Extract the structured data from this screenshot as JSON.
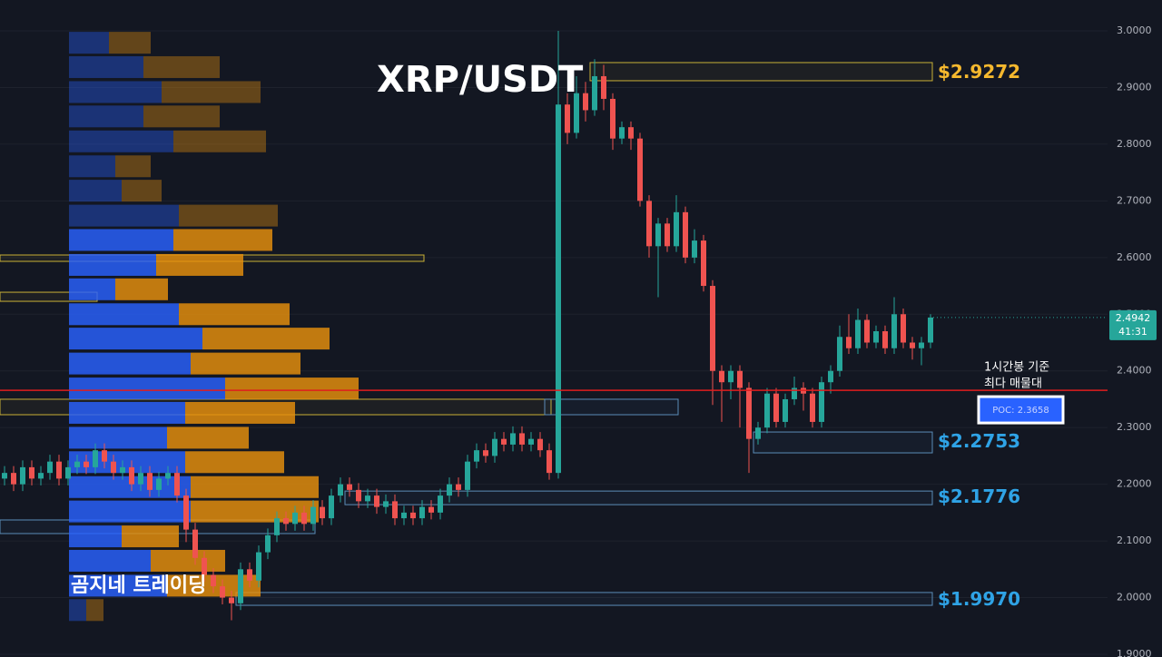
{
  "chart_data": {
    "type": "candlestick",
    "title": "XRP/USDT",
    "watermark": "곰지네 트레이딩",
    "ylim": [
      1.9,
      3.0
    ],
    "yticks": [
      {
        "value": 3.0,
        "label": "3.0000"
      },
      {
        "value": 2.9,
        "label": "2.9000"
      },
      {
        "value": 2.8,
        "label": "2.8000"
      },
      {
        "value": 2.7,
        "label": "2.7000"
      },
      {
        "value": 2.6,
        "label": "2.6000"
      },
      {
        "value": 2.5,
        "label": "2.5000"
      },
      {
        "value": 2.4,
        "label": "2.4000"
      },
      {
        "value": 2.3,
        "label": "2.3000"
      },
      {
        "value": 2.2,
        "label": "2.2000"
      },
      {
        "value": 2.1,
        "label": "2.1000"
      },
      {
        "value": 2.0,
        "label": "2.0000"
      },
      {
        "value": 1.9,
        "label": "1.9000"
      }
    ],
    "grid": true,
    "up_color": "#26a69a",
    "down_color": "#ef5350",
    "candles": [
      [
        2.21,
        2.232,
        2.198,
        2.22
      ],
      [
        2.22,
        2.232,
        2.188,
        2.2
      ],
      [
        2.2,
        2.242,
        2.188,
        2.23
      ],
      [
        2.23,
        2.242,
        2.198,
        2.21
      ],
      [
        2.21,
        2.232,
        2.198,
        2.22
      ],
      [
        2.22,
        2.252,
        2.208,
        2.24
      ],
      [
        2.24,
        2.252,
        2.198,
        2.21
      ],
      [
        2.21,
        2.242,
        2.198,
        2.23
      ],
      [
        2.23,
        2.252,
        2.218,
        2.24
      ],
      [
        2.24,
        2.252,
        2.218,
        2.23
      ],
      [
        2.23,
        2.272,
        2.218,
        2.26
      ],
      [
        2.26,
        2.272,
        2.228,
        2.24
      ],
      [
        2.24,
        2.252,
        2.208,
        2.22
      ],
      [
        2.22,
        2.242,
        2.208,
        2.23
      ],
      [
        2.23,
        2.242,
        2.188,
        2.2
      ],
      [
        2.2,
        2.232,
        2.188,
        2.22
      ],
      [
        2.22,
        2.232,
        2.178,
        2.19
      ],
      [
        2.19,
        2.222,
        2.178,
        2.21
      ],
      [
        2.21,
        2.232,
        2.198,
        2.22
      ],
      [
        2.22,
        2.232,
        2.168,
        2.18
      ],
      [
        2.18,
        2.192,
        2.098,
        2.12
      ],
      [
        2.12,
        2.132,
        2.058,
        2.07
      ],
      [
        2.07,
        2.082,
        2.028,
        2.04
      ],
      [
        2.04,
        2.052,
        2.008,
        2.02
      ],
      [
        2.02,
        2.032,
        1.988,
        2.0
      ],
      [
        2.0,
        2.012,
        1.96,
        1.99
      ],
      [
        1.99,
        2.062,
        1.978,
        2.05
      ],
      [
        2.05,
        2.062,
        2.018,
        2.03
      ],
      [
        2.03,
        2.092,
        2.018,
        2.08
      ],
      [
        2.08,
        2.122,
        2.068,
        2.11
      ],
      [
        2.11,
        2.152,
        2.098,
        2.14
      ],
      [
        2.14,
        2.152,
        2.118,
        2.13
      ],
      [
        2.13,
        2.162,
        2.118,
        2.15
      ],
      [
        2.15,
        2.162,
        2.118,
        2.13
      ],
      [
        2.13,
        2.172,
        2.118,
        2.16
      ],
      [
        2.16,
        2.172,
        2.128,
        2.14
      ],
      [
        2.14,
        2.192,
        2.128,
        2.18
      ],
      [
        2.18,
        2.212,
        2.168,
        2.2
      ],
      [
        2.2,
        2.212,
        2.178,
        2.19
      ],
      [
        2.19,
        2.202,
        2.158,
        2.17
      ],
      [
        2.17,
        2.192,
        2.158,
        2.18
      ],
      [
        2.18,
        2.192,
        2.148,
        2.16
      ],
      [
        2.16,
        2.182,
        2.148,
        2.17
      ],
      [
        2.17,
        2.182,
        2.128,
        2.14
      ],
      [
        2.14,
        2.162,
        2.128,
        2.15
      ],
      [
        2.15,
        2.162,
        2.128,
        2.14
      ],
      [
        2.14,
        2.172,
        2.128,
        2.16
      ],
      [
        2.16,
        2.172,
        2.138,
        2.15
      ],
      [
        2.15,
        2.192,
        2.138,
        2.18
      ],
      [
        2.18,
        2.212,
        2.168,
        2.2
      ],
      [
        2.2,
        2.212,
        2.178,
        2.19
      ],
      [
        2.19,
        2.252,
        2.178,
        2.24
      ],
      [
        2.24,
        2.272,
        2.228,
        2.26
      ],
      [
        2.26,
        2.272,
        2.238,
        2.25
      ],
      [
        2.25,
        2.292,
        2.238,
        2.28
      ],
      [
        2.28,
        2.292,
        2.258,
        2.27
      ],
      [
        2.27,
        2.302,
        2.258,
        2.29
      ],
      [
        2.29,
        2.302,
        2.258,
        2.27
      ],
      [
        2.27,
        2.292,
        2.258,
        2.28
      ],
      [
        2.28,
        2.292,
        2.248,
        2.26
      ],
      [
        2.26,
        2.272,
        2.208,
        2.22
      ],
      [
        2.22,
        3.0,
        2.21,
        2.87
      ],
      [
        2.87,
        2.89,
        2.8,
        2.82
      ],
      [
        2.82,
        2.92,
        2.81,
        2.89
      ],
      [
        2.89,
        2.91,
        2.84,
        2.86
      ],
      [
        2.86,
        2.95,
        2.85,
        2.92
      ],
      [
        2.92,
        2.94,
        2.86,
        2.88
      ],
      [
        2.88,
        2.89,
        2.79,
        2.81
      ],
      [
        2.81,
        2.84,
        2.8,
        2.83
      ],
      [
        2.83,
        2.84,
        2.79,
        2.81
      ],
      [
        2.81,
        2.82,
        2.69,
        2.7
      ],
      [
        2.7,
        2.71,
        2.6,
        2.62
      ],
      [
        2.62,
        2.67,
        2.53,
        2.66
      ],
      [
        2.66,
        2.67,
        2.61,
        2.62
      ],
      [
        2.62,
        2.71,
        2.61,
        2.68
      ],
      [
        2.68,
        2.69,
        2.59,
        2.6
      ],
      [
        2.6,
        2.65,
        2.59,
        2.63
      ],
      [
        2.63,
        2.64,
        2.54,
        2.55
      ],
      [
        2.55,
        2.56,
        2.34,
        2.4
      ],
      [
        2.4,
        2.41,
        2.31,
        2.38
      ],
      [
        2.38,
        2.41,
        2.35,
        2.4
      ],
      [
        2.4,
        2.41,
        2.3,
        2.37
      ],
      [
        2.37,
        2.38,
        2.22,
        2.28
      ],
      [
        2.28,
        2.31,
        2.27,
        2.3
      ],
      [
        2.3,
        2.37,
        2.29,
        2.36
      ],
      [
        2.36,
        2.37,
        2.3,
        2.31
      ],
      [
        2.31,
        2.36,
        2.3,
        2.35
      ],
      [
        2.35,
        2.39,
        2.34,
        2.37
      ],
      [
        2.37,
        2.38,
        2.33,
        2.36
      ],
      [
        2.36,
        2.37,
        2.3,
        2.31
      ],
      [
        2.31,
        2.39,
        2.3,
        2.38
      ],
      [
        2.38,
        2.41,
        2.36,
        2.4
      ],
      [
        2.4,
        2.48,
        2.39,
        2.46
      ],
      [
        2.46,
        2.5,
        2.43,
        2.44
      ],
      [
        2.44,
        2.51,
        2.43,
        2.49
      ],
      [
        2.49,
        2.5,
        2.44,
        2.45
      ],
      [
        2.45,
        2.48,
        2.44,
        2.47
      ],
      [
        2.47,
        2.48,
        2.43,
        2.44
      ],
      [
        2.44,
        2.53,
        2.43,
        2.5
      ],
      [
        2.5,
        2.51,
        2.44,
        2.45
      ],
      [
        2.45,
        2.46,
        2.42,
        2.44
      ],
      [
        2.44,
        2.46,
        2.41,
        2.45
      ],
      [
        2.45,
        2.5,
        2.44,
        2.4942
      ]
    ],
    "volume_profile": {
      "value_area": [
        2.0,
        2.65
      ],
      "buy_color": "#2962ff",
      "sell_color": "#e8900c",
      "rows": [
        {
          "price": 2.979,
          "buy": 44,
          "sell": 46
        },
        {
          "price": 2.936,
          "buy": 82,
          "sell": 84
        },
        {
          "price": 2.892,
          "buy": 102,
          "sell": 109
        },
        {
          "price": 2.849,
          "buy": 82,
          "sell": 84
        },
        {
          "price": 2.805,
          "buy": 115,
          "sell": 102
        },
        {
          "price": 2.761,
          "buy": 51,
          "sell": 39
        },
        {
          "price": 2.718,
          "buy": 58,
          "sell": 44
        },
        {
          "price": 2.674,
          "buy": 121,
          "sell": 109
        },
        {
          "price": 2.631,
          "buy": 115,
          "sell": 109
        },
        {
          "price": 2.587,
          "buy": 96,
          "sell": 96
        },
        {
          "price": 2.544,
          "buy": 51,
          "sell": 58
        },
        {
          "price": 2.5,
          "buy": 121,
          "sell": 122
        },
        {
          "price": 2.457,
          "buy": 147,
          "sell": 140
        },
        {
          "price": 2.413,
          "buy": 134,
          "sell": 121
        },
        {
          "price": 2.369,
          "buy": 172,
          "sell": 147
        },
        {
          "price": 2.326,
          "buy": 128,
          "sell": 121
        },
        {
          "price": 2.282,
          "buy": 108,
          "sell": 90
        },
        {
          "price": 2.239,
          "buy": 128,
          "sell": 109
        },
        {
          "price": 2.195,
          "buy": 134,
          "sell": 141
        },
        {
          "price": 2.152,
          "buy": 134,
          "sell": 141
        },
        {
          "price": 2.108,
          "buy": 58,
          "sell": 63
        },
        {
          "price": 2.065,
          "buy": 90,
          "sell": 82
        },
        {
          "price": 2.021,
          "buy": 108,
          "sell": 103
        },
        {
          "price": 1.978,
          "buy": 19,
          "sell": 19
        }
      ]
    },
    "zones": [
      {
        "low": 2.912,
        "high": 2.944,
        "from": 65,
        "to": 102,
        "color": "#c9b037"
      },
      {
        "low": 2.5933,
        "high": 2.6045,
        "from": 0,
        "to": 46,
        "color": "#c9b037"
      },
      {
        "low": 2.5228,
        "high": 2.5388,
        "from": 0,
        "to": 10,
        "color": "#c9b037"
      },
      {
        "low": 2.3227,
        "high": 2.35,
        "from": 0,
        "to": 60,
        "color": "#c9b037"
      },
      {
        "low": 2.3227,
        "high": 2.35,
        "from": 60,
        "to": 74,
        "color": "#5b8db8"
      },
      {
        "low": 2.2554,
        "high": 2.2922,
        "from": 83,
        "to": 102,
        "color": "#5b8db8"
      },
      {
        "low": 2.164,
        "high": 2.188,
        "from": 38,
        "to": 102,
        "color": "#5b8db8"
      },
      {
        "low": 2.113,
        "high": 2.137,
        "from": 0,
        "to": 34,
        "color": "#5b8db8"
      },
      {
        "low": 1.9864,
        "high": 2.009,
        "from": 26,
        "to": 102,
        "color": "#5b8db8"
      }
    ],
    "levels": [
      {
        "value": 2.9272,
        "label": "$2.9272",
        "color": "#f5b82e"
      },
      {
        "value": 2.2753,
        "label": "$2.2753",
        "color": "#2fa3e6"
      },
      {
        "value": 2.1776,
        "label": "$2.1776",
        "color": "#2fa3e6"
      },
      {
        "value": 1.997,
        "label": "$1.9970",
        "color": "#2fa3e6"
      }
    ],
    "poc": {
      "value": 2.3658,
      "label": "POC: 2.3658",
      "note": [
        "1시간봉 기준",
        "최다 매물대"
      ],
      "color": "#e01e1e"
    },
    "last": {
      "value": 2.4942,
      "label": "2.4942",
      "countdown": "41:31"
    }
  }
}
